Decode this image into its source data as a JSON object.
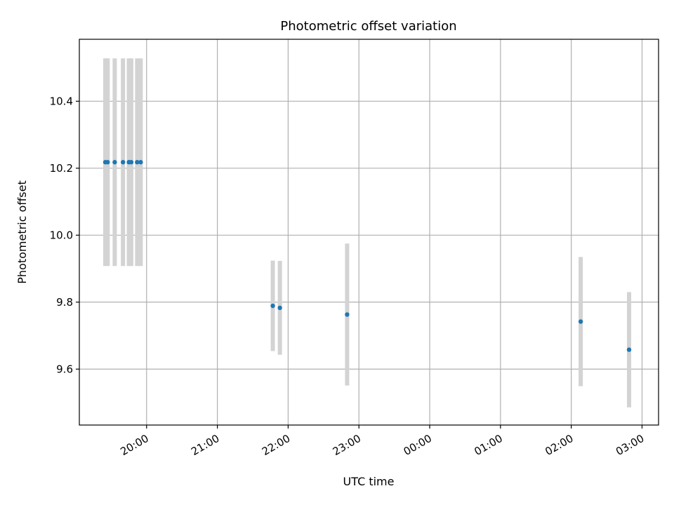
{
  "chart_data": {
    "type": "scatter",
    "title": "Photometric offset variation",
    "xlabel": "UTC time",
    "ylabel": "Photometric offset",
    "x_tick_labels": [
      "20:00",
      "21:00",
      "22:00",
      "23:00",
      "00:00",
      "01:00",
      "02:00",
      "03:00"
    ],
    "y_tick_labels": [
      "9.6",
      "9.8",
      "10.0",
      "10.2",
      "10.4"
    ],
    "y_ticks": [
      9.6,
      9.8,
      10.0,
      10.2,
      10.4
    ],
    "ylim": [
      9.433,
      10.585
    ],
    "xlim": [
      "19:03",
      "03:14"
    ],
    "grid": true,
    "colors": {
      "point": "#1f77b4",
      "errorbar": "#d3d3d3",
      "grid": "#b0b0b0"
    },
    "points": [
      {
        "x": "19:25",
        "y": 10.218,
        "error": 0.31
      },
      {
        "x": "19:27",
        "y": 10.218,
        "error": 0.31
      },
      {
        "x": "19:33",
        "y": 10.218,
        "error": 0.31
      },
      {
        "x": "19:40",
        "y": 10.218,
        "error": 0.31
      },
      {
        "x": "19:45",
        "y": 10.218,
        "error": 0.31
      },
      {
        "x": "19:47",
        "y": 10.218,
        "error": 0.31
      },
      {
        "x": "19:52",
        "y": 10.218,
        "error": 0.31
      },
      {
        "x": "19:55",
        "y": 10.218,
        "error": 0.31
      },
      {
        "x": "21:47",
        "y": 9.789,
        "error": 0.135
      },
      {
        "x": "21:53",
        "y": 9.783,
        "error": 0.14
      },
      {
        "x": "22:50",
        "y": 9.763,
        "error": 0.212
      },
      {
        "x": "02:08",
        "y": 9.742,
        "error": 0.193
      },
      {
        "x": "02:49",
        "y": 9.658,
        "error": 0.172
      }
    ]
  }
}
